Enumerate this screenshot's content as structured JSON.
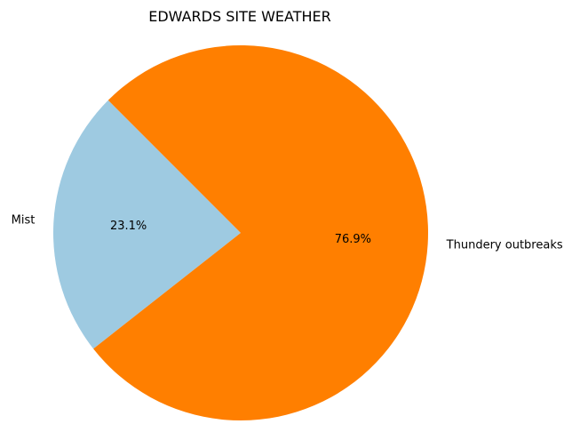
{
  "chart_data": {
    "type": "pie",
    "title": "EDWARDS SITE WEATHER",
    "categories": [
      "Mist",
      "Thundery outbreaks"
    ],
    "values": [
      23.1,
      76.9
    ],
    "value_labels": [
      "23.1%",
      "76.9%"
    ],
    "colors": [
      "#9ecae1",
      "#ff7f00"
    ],
    "start_angle_deg": 135,
    "direction": "counterclockwise",
    "legend": "none"
  }
}
